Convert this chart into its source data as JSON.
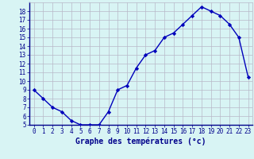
{
  "hours": [
    0,
    1,
    2,
    3,
    4,
    5,
    6,
    7,
    8,
    9,
    10,
    11,
    12,
    13,
    14,
    15,
    16,
    17,
    18,
    19,
    20,
    21,
    22,
    23
  ],
  "temps": [
    9,
    8,
    7,
    6.5,
    5.5,
    5,
    5,
    5,
    6.5,
    9,
    9.5,
    11.5,
    13,
    13.5,
    15,
    15.5,
    16.5,
    17.5,
    18.5,
    18,
    17.5,
    16.5,
    15,
    10.5
  ],
  "line_color": "#0000bb",
  "marker_color": "#0000bb",
  "bg_color": "#d8f4f4",
  "grid_color": "#b8b8c8",
  "xlabel": "Graphe des températures (°c)",
  "xlabel_color": "#00008b",
  "axis_label_color": "#00008b",
  "ylim_min": 5,
  "ylim_max": 19,
  "xlim_min": -0.5,
  "xlim_max": 23.5,
  "bottom_bar_color": "#00008b",
  "tick_fontsize": 5.5,
  "label_fontsize": 7.0
}
